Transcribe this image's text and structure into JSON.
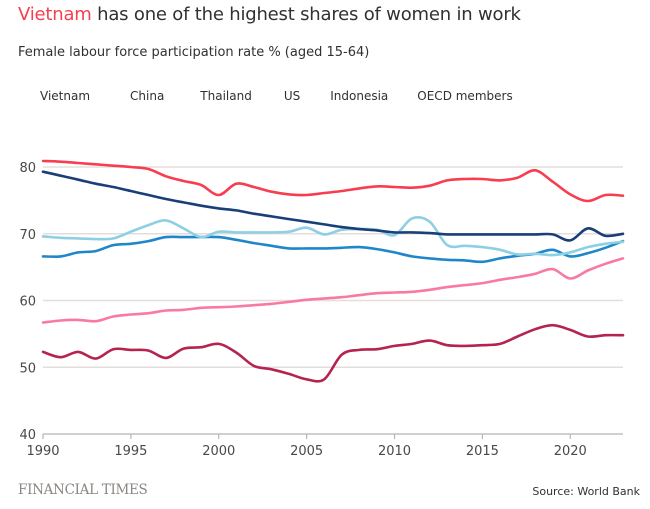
{
  "header": {
    "title_highlight": "Vietnam",
    "title_rest": " has one of the highest shares of women in work",
    "subtitle": "Female labour force participation rate % (aged 15-64)"
  },
  "footer": {
    "logo": "FINANCIAL TIMES",
    "source": "Source: World Bank"
  },
  "chart_data": {
    "type": "line",
    "title": "Vietnam has one of the highest shares of women in work",
    "subtitle": "Female labour force participation rate % (aged 15-64)",
    "xlabel": "",
    "ylabel": "",
    "xlim": [
      1990,
      2023
    ],
    "ylim": [
      40,
      80
    ],
    "grid": true,
    "legend_position": "top",
    "x_ticks": [
      1990,
      1995,
      2000,
      2005,
      2010,
      2015,
      2020
    ],
    "y_ticks": [
      40,
      50,
      60,
      70,
      80
    ],
    "x": [
      1990,
      1991,
      1992,
      1993,
      1994,
      1995,
      1996,
      1997,
      1998,
      1999,
      2000,
      2001,
      2002,
      2003,
      2004,
      2005,
      2006,
      2007,
      2008,
      2009,
      2010,
      2011,
      2012,
      2013,
      2014,
      2015,
      2016,
      2017,
      2018,
      2019,
      2020,
      2021,
      2022,
      2023
    ],
    "series": [
      {
        "name": "Vietnam",
        "color": "#f83d50",
        "values": [
          80.9,
          80.8,
          80.6,
          80.4,
          80.2,
          80.0,
          79.7,
          78.6,
          77.9,
          77.3,
          75.8,
          77.5,
          77.0,
          76.3,
          75.9,
          75.8,
          76.1,
          76.4,
          76.8,
          77.1,
          77.0,
          76.9,
          77.2,
          78.0,
          78.2,
          78.2,
          78.0,
          78.4,
          79.5,
          77.8,
          75.9,
          74.9,
          75.8,
          75.7
        ]
      },
      {
        "name": "China",
        "color": "#1a3e78",
        "values": [
          79.3,
          78.7,
          78.1,
          77.5,
          77.0,
          76.4,
          75.8,
          75.2,
          74.7,
          74.2,
          73.8,
          73.5,
          73.0,
          72.6,
          72.2,
          71.8,
          71.4,
          71.0,
          70.7,
          70.5,
          70.2,
          70.2,
          70.1,
          69.9,
          69.9,
          69.9,
          69.9,
          69.9,
          69.9,
          69.9,
          69.0,
          70.8,
          69.7,
          70.0
        ]
      },
      {
        "name": "Thailand",
        "color": "#8dcfe3",
        "values": [
          69.6,
          69.4,
          69.3,
          69.2,
          69.3,
          70.3,
          71.3,
          72.0,
          70.8,
          69.5,
          70.3,
          70.2,
          70.2,
          70.2,
          70.3,
          70.9,
          69.9,
          70.6,
          70.7,
          70.6,
          69.8,
          72.3,
          71.8,
          68.3,
          68.2,
          68.0,
          67.6,
          66.9,
          67.0,
          66.8,
          67.2,
          68.0,
          68.5,
          68.8
        ]
      },
      {
        "name": "US",
        "color": "#1f87c9",
        "values": [
          66.6,
          66.6,
          67.2,
          67.4,
          68.3,
          68.5,
          68.9,
          69.5,
          69.5,
          69.5,
          69.5,
          69.1,
          68.6,
          68.2,
          67.8,
          67.8,
          67.8,
          67.9,
          68.0,
          67.7,
          67.2,
          66.6,
          66.3,
          66.1,
          66.0,
          65.8,
          66.3,
          66.7,
          67.0,
          67.6,
          66.6,
          67.1,
          67.9,
          68.9
        ]
      },
      {
        "name": "Indonesia",
        "color": "#b5234f",
        "values": [
          52.3,
          51.5,
          52.3,
          51.3,
          52.7,
          52.6,
          52.5,
          51.4,
          52.8,
          53.0,
          53.5,
          52.2,
          50.2,
          49.7,
          49.0,
          48.2,
          48.2,
          51.9,
          52.6,
          52.7,
          53.2,
          53.5,
          54.0,
          53.3,
          53.2,
          53.3,
          53.5,
          54.6,
          55.7,
          56.3,
          55.6,
          54.6,
          54.8,
          54.8
        ]
      },
      {
        "name": "OECD members",
        "color": "#f97aa0",
        "values": [
          56.7,
          57.0,
          57.1,
          56.9,
          57.6,
          57.9,
          58.1,
          58.5,
          58.6,
          58.9,
          59.0,
          59.1,
          59.3,
          59.5,
          59.8,
          60.1,
          60.3,
          60.5,
          60.8,
          61.1,
          61.2,
          61.3,
          61.6,
          62.0,
          62.3,
          62.6,
          63.1,
          63.5,
          64.0,
          64.7,
          63.3,
          64.5,
          65.5,
          66.3
        ]
      }
    ]
  }
}
